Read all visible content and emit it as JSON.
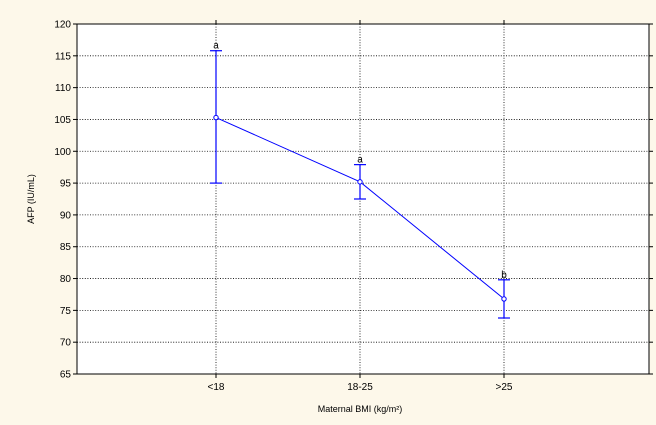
{
  "chart_data": {
    "type": "line",
    "categories": [
      "<18",
      "18-25",
      ">25"
    ],
    "series": [
      {
        "values": [
          105.3,
          95.2,
          76.8
        ],
        "error_low": [
          95.0,
          92.5,
          73.8
        ],
        "error_high": [
          115.8,
          97.9,
          79.8
        ],
        "group_labels": [
          "a",
          "a",
          "b"
        ]
      }
    ],
    "xlabel": "Maternal BMI (kg/m²)",
    "ylabel": "AFP (IU/mL)",
    "ylim": [
      65,
      120
    ],
    "yticks": [
      65,
      70,
      75,
      80,
      85,
      90,
      95,
      100,
      105,
      110,
      115,
      120
    ],
    "grid": true,
    "colors": {
      "background": "#fdf8ea",
      "plot_area": "#ffffff",
      "series": "#0000ff",
      "grid": "#000000",
      "axis": "#000000"
    }
  }
}
